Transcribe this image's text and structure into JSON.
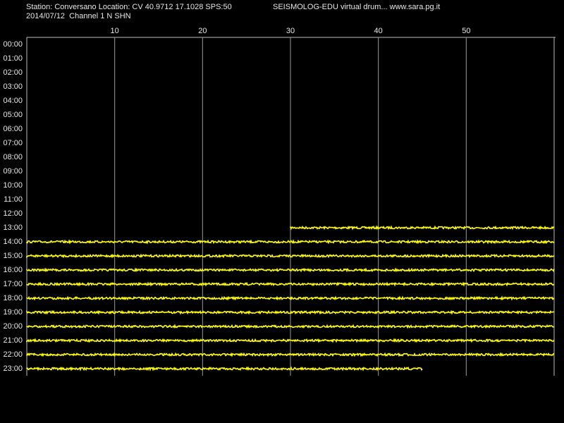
{
  "chart_data": {
    "type": "helicorder",
    "station": "Station: Conversano Location: CV 40.9712 17.1028 SPS:50",
    "software": "SEISMOLOG-EDU virtual drum... www.sara.pg.it",
    "date_channel": "2014/07/12  Channel 1 N SHN",
    "xlim": [
      0,
      60
    ],
    "xticks": [
      10,
      20,
      30,
      40,
      50
    ],
    "color": "#ffff00",
    "grid": true,
    "rows": [
      {
        "label": "00:00"
      },
      {
        "label": "01:00"
      },
      {
        "label": "02:00"
      },
      {
        "label": "03:00"
      },
      {
        "label": "04:00"
      },
      {
        "label": "05:00"
      },
      {
        "label": "06:00"
      },
      {
        "label": "07:00"
      },
      {
        "label": "08:00"
      },
      {
        "label": "09:00"
      },
      {
        "label": "10:00"
      },
      {
        "label": "11:00"
      },
      {
        "label": "12:00"
      },
      {
        "label": "13:00",
        "trace": [
          30,
          60
        ]
      },
      {
        "label": "14:00",
        "trace": [
          0,
          60
        ]
      },
      {
        "label": "15:00",
        "trace": [
          0,
          60
        ]
      },
      {
        "label": "16:00",
        "trace": [
          0,
          60
        ]
      },
      {
        "label": "17:00",
        "trace": [
          0,
          60
        ]
      },
      {
        "label": "18:00",
        "trace": [
          0,
          60
        ]
      },
      {
        "label": "19:00",
        "trace": [
          0,
          60
        ]
      },
      {
        "label": "20:00",
        "trace": [
          0,
          60
        ]
      },
      {
        "label": "21:00",
        "trace": [
          0,
          60
        ]
      },
      {
        "label": "22:00",
        "trace": [
          0,
          60
        ]
      },
      {
        "label": "23:00",
        "trace": [
          0,
          45
        ]
      }
    ]
  }
}
